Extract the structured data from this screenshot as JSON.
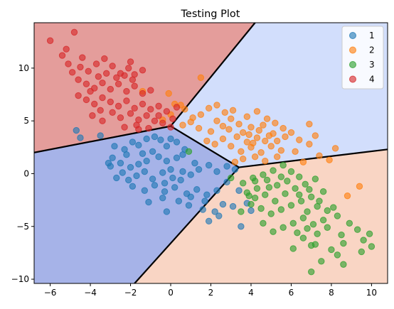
{
  "chart_data": {
    "type": "scatter",
    "title": "Testing Plot",
    "xlabel": "",
    "ylabel": "",
    "xlim": [
      -6.8,
      10.8
    ],
    "ylim": [
      -10.4,
      14.3
    ],
    "x_ticks": [
      -6,
      -4,
      -2,
      0,
      2,
      4,
      6,
      8,
      10
    ],
    "y_ticks": [
      -10,
      -5,
      0,
      5,
      10
    ],
    "x_tick_labels": [
      "−6",
      "−4",
      "−2",
      "0",
      "2",
      "4",
      "6",
      "8",
      "10"
    ],
    "y_tick_labels": [
      "−10",
      "−5",
      "0",
      "5",
      "10"
    ],
    "grid": false,
    "legend_position": "top-right",
    "background_regions": [
      {
        "label": "1",
        "color": "#a6b3e8"
      },
      {
        "label": "2",
        "color": "#d2defc"
      },
      {
        "label": "3",
        "color": "#f9d5c4"
      },
      {
        "label": "4",
        "color": "#e49d9b"
      }
    ],
    "boundaries": [
      {
        "from": [
          -6.8,
          2.0
        ],
        "to": [
          0.0,
          4.5
        ]
      },
      {
        "from": [
          0.0,
          4.5
        ],
        "to": [
          4.2,
          14.3
        ]
      },
      {
        "from": [
          0.0,
          4.5
        ],
        "to": [
          3.4,
          0.6
        ]
      },
      {
        "from": [
          3.4,
          0.6
        ],
        "to": [
          10.8,
          2.3
        ]
      },
      {
        "from": [
          3.4,
          0.6
        ],
        "to": [
          -1.8,
          -10.4
        ]
      }
    ],
    "series": [
      {
        "name": "1",
        "color": "#1f77b4",
        "points": [
          [
            -4.7,
            4.1
          ],
          [
            -4.5,
            3.4
          ],
          [
            -3.5,
            3.6
          ],
          [
            -2.8,
            2.6
          ],
          [
            -2.9,
            1.5
          ],
          [
            -2.2,
            1.8
          ],
          [
            -1.9,
            3.0
          ],
          [
            -1.6,
            2.7
          ],
          [
            -1.2,
            3.3
          ],
          [
            -0.8,
            3.5
          ],
          [
            -0.5,
            3.2
          ],
          [
            0.0,
            3.3
          ],
          [
            0.3,
            3.0
          ],
          [
            -3.1,
            1.0
          ],
          [
            -3.0,
            0.7
          ],
          [
            -2.5,
            1.0
          ],
          [
            -2.0,
            0.6
          ],
          [
            -1.6,
            0.9
          ],
          [
            -1.2,
            1.2
          ],
          [
            -0.6,
            1.6
          ],
          [
            -0.2,
            1.2
          ],
          [
            0.3,
            1.5
          ],
          [
            0.6,
            1.8
          ],
          [
            -0.9,
            2.1
          ],
          [
            -0.2,
            2.6
          ],
          [
            0.7,
            2.3
          ],
          [
            -2.7,
            -0.4
          ],
          [
            -2.4,
            0.1
          ],
          [
            -2.1,
            -0.6
          ],
          [
            -1.7,
            -0.2
          ],
          [
            -1.3,
            0.2
          ],
          [
            -0.9,
            -0.5
          ],
          [
            -0.4,
            0.1
          ],
          [
            0.1,
            -0.4
          ],
          [
            0.6,
            0.2
          ],
          [
            1.0,
            -0.1
          ],
          [
            1.4,
            0.4
          ],
          [
            1.9,
            0.8
          ],
          [
            2.3,
            0.2
          ],
          [
            2.8,
            0.7
          ],
          [
            -1.9,
            -1.2
          ],
          [
            -1.3,
            -1.6
          ],
          [
            -0.8,
            -1.1
          ],
          [
            -0.3,
            -1.7
          ],
          [
            0.2,
            -1.3
          ],
          [
            0.8,
            -1.9
          ],
          [
            1.3,
            -1.5
          ],
          [
            1.8,
            -2.0
          ],
          [
            2.3,
            -1.6
          ],
          [
            -1.1,
            -2.7
          ],
          [
            -0.4,
            -2.3
          ],
          [
            0.4,
            -2.6
          ],
          [
            1.0,
            -2.2
          ],
          [
            1.7,
            -2.6
          ],
          [
            2.6,
            -2.9
          ],
          [
            2.2,
            -3.6
          ],
          [
            1.6,
            -3.4
          ],
          [
            2.4,
            -4.0
          ],
          [
            1.9,
            -4.5
          ],
          [
            3.1,
            -3.1
          ],
          [
            3.8,
            -2.8
          ],
          [
            3.5,
            -5.0
          ],
          [
            4.0,
            -3.5
          ],
          [
            3.4,
            -1.6
          ],
          [
            -0.3,
            -0.9
          ],
          [
            0.5,
            -0.6
          ],
          [
            -1.4,
            1.9
          ],
          [
            0.0,
            0.4
          ],
          [
            1.2,
            1.0
          ],
          [
            -2.3,
            2.3
          ],
          [
            2.8,
            -0.8
          ],
          [
            3.2,
            0.4
          ],
          [
            0.9,
            -3.0
          ],
          [
            -0.2,
            -3.6
          ]
        ]
      },
      {
        "name": "2",
        "color": "#ff7f0e",
        "points": [
          [
            1.5,
            9.1
          ],
          [
            -1.4,
            7.8
          ],
          [
            -0.1,
            7.6
          ],
          [
            0.2,
            6.6
          ],
          [
            0.5,
            6.5
          ],
          [
            0.7,
            6.1
          ],
          [
            0.0,
            5.6
          ],
          [
            -0.4,
            5.1
          ],
          [
            1.9,
            6.2
          ],
          [
            2.3,
            6.5
          ],
          [
            1.1,
            5.3
          ],
          [
            1.5,
            5.6
          ],
          [
            2.7,
            5.8
          ],
          [
            3.1,
            6.0
          ],
          [
            2.3,
            5.0
          ],
          [
            2.6,
            4.5
          ],
          [
            2.0,
            4.0
          ],
          [
            1.4,
            4.3
          ],
          [
            0.6,
            4.6
          ],
          [
            3.0,
            5.2
          ],
          [
            3.4,
            4.7
          ],
          [
            2.9,
            4.2
          ],
          [
            3.6,
            3.9
          ],
          [
            4.0,
            4.4
          ],
          [
            4.4,
            4.1
          ],
          [
            3.8,
            5.4
          ],
          [
            4.3,
            5.9
          ],
          [
            4.8,
            5.2
          ],
          [
            5.2,
            4.8
          ],
          [
            5.6,
            4.3
          ],
          [
            6.0,
            3.9
          ],
          [
            6.4,
            3.2
          ],
          [
            5.7,
            3.5
          ],
          [
            5.1,
            3.8
          ],
          [
            4.7,
            3.1
          ],
          [
            4.3,
            3.4
          ],
          [
            3.8,
            3.0
          ],
          [
            3.3,
            3.5
          ],
          [
            3.0,
            2.6
          ],
          [
            3.5,
            2.1
          ],
          [
            4.0,
            2.5
          ],
          [
            4.5,
            2.0
          ],
          [
            5.0,
            2.6
          ],
          [
            5.5,
            2.2
          ],
          [
            6.2,
            2.1
          ],
          [
            6.9,
            2.8
          ],
          [
            7.4,
            1.7
          ],
          [
            8.2,
            2.4
          ],
          [
            4.2,
            1.6
          ],
          [
            3.6,
            1.4
          ],
          [
            3.2,
            1.1
          ],
          [
            4.7,
            1.2
          ],
          [
            5.3,
            1.6
          ],
          [
            6.6,
            1.1
          ],
          [
            7.9,
            1.3
          ],
          [
            2.2,
            2.8
          ],
          [
            2.6,
            3.3
          ],
          [
            1.8,
            3.1
          ],
          [
            4.9,
            3.6
          ],
          [
            4.1,
            2.9
          ],
          [
            3.9,
            3.7
          ],
          [
            4.6,
            4.6
          ],
          [
            5.3,
            3.1
          ],
          [
            8.8,
            -2.1
          ],
          [
            9.4,
            -1.2
          ],
          [
            6.9,
            4.7
          ],
          [
            7.2,
            3.6
          ],
          [
            1.0,
            4.9
          ]
        ]
      },
      {
        "name": "3",
        "color": "#2ca02c",
        "points": [
          [
            0.9,
            2.1
          ],
          [
            3.0,
            -0.4
          ],
          [
            3.6,
            -0.9
          ],
          [
            4.1,
            -0.4
          ],
          [
            4.6,
            -0.1
          ],
          [
            5.1,
            0.3
          ],
          [
            5.6,
            0.8
          ],
          [
            6.0,
            0.2
          ],
          [
            6.4,
            -0.3
          ],
          [
            5.8,
            -0.7
          ],
          [
            5.3,
            -1.1
          ],
          [
            4.8,
            -0.6
          ],
          [
            4.3,
            -1.4
          ],
          [
            3.8,
            -1.8
          ],
          [
            4.2,
            -2.3
          ],
          [
            4.7,
            -2.0
          ],
          [
            5.2,
            -2.6
          ],
          [
            5.7,
            -1.9
          ],
          [
            6.2,
            -1.4
          ],
          [
            6.7,
            -1.0
          ],
          [
            7.2,
            -0.5
          ],
          [
            7.6,
            -1.7
          ],
          [
            7.0,
            -2.2
          ],
          [
            6.5,
            -2.6
          ],
          [
            6.0,
            -3.0
          ],
          [
            5.5,
            -3.4
          ],
          [
            5.0,
            -3.8
          ],
          [
            4.5,
            -3.3
          ],
          [
            4.0,
            -2.9
          ],
          [
            3.5,
            -3.6
          ],
          [
            6.8,
            -3.6
          ],
          [
            7.3,
            -3.1
          ],
          [
            7.8,
            -3.5
          ],
          [
            8.3,
            -4.0
          ],
          [
            7.6,
            -4.4
          ],
          [
            7.1,
            -4.8
          ],
          [
            6.6,
            -4.2
          ],
          [
            6.1,
            -4.7
          ],
          [
            5.6,
            -5.1
          ],
          [
            5.1,
            -5.5
          ],
          [
            6.3,
            -5.6
          ],
          [
            6.8,
            -5.2
          ],
          [
            7.3,
            -5.7
          ],
          [
            7.8,
            -5.1
          ],
          [
            8.5,
            -5.8
          ],
          [
            8.9,
            -4.7
          ],
          [
            9.3,
            -5.3
          ],
          [
            9.6,
            -6.3
          ],
          [
            9.9,
            -5.7
          ],
          [
            10.0,
            -6.9
          ],
          [
            8.6,
            -6.6
          ],
          [
            8.0,
            -7.2
          ],
          [
            7.2,
            -6.7
          ],
          [
            6.6,
            -6.1
          ],
          [
            7.5,
            -8.3
          ],
          [
            7.0,
            -9.3
          ],
          [
            8.6,
            -8.6
          ],
          [
            7.0,
            -6.8
          ],
          [
            6.1,
            -7.1
          ],
          [
            8.3,
            -7.7
          ],
          [
            9.5,
            -7.4
          ],
          [
            4.6,
            -4.7
          ],
          [
            3.9,
            -2.1
          ],
          [
            4.2,
            -0.7
          ],
          [
            4.9,
            -1.3
          ],
          [
            5.5,
            -0.3
          ],
          [
            6.4,
            -2.0
          ],
          [
            6.9,
            -1.5
          ],
          [
            7.4,
            -2.6
          ],
          [
            8.1,
            -3.2
          ]
        ]
      },
      {
        "name": "4",
        "color": "#d62728",
        "points": [
          [
            -6.0,
            12.6
          ],
          [
            -4.8,
            13.4
          ],
          [
            -5.4,
            11.2
          ],
          [
            -5.1,
            10.4
          ],
          [
            -4.9,
            9.6
          ],
          [
            -4.5,
            10.1
          ],
          [
            -4.1,
            9.7
          ],
          [
            -3.7,
            10.4
          ],
          [
            -3.3,
            10.9
          ],
          [
            -2.9,
            10.2
          ],
          [
            -2.5,
            9.5
          ],
          [
            -2.1,
            10.0
          ],
          [
            -1.8,
            9.4
          ],
          [
            -1.4,
            9.8
          ],
          [
            -4.6,
            8.9
          ],
          [
            -4.2,
            8.5
          ],
          [
            -3.8,
            8.1
          ],
          [
            -3.4,
            8.6
          ],
          [
            -3.0,
            8.0
          ],
          [
            -2.6,
            8.5
          ],
          [
            -2.2,
            7.8
          ],
          [
            -1.8,
            8.3
          ],
          [
            -1.4,
            7.6
          ],
          [
            -1.0,
            7.9
          ],
          [
            -4.6,
            7.4
          ],
          [
            -4.2,
            7.0
          ],
          [
            -3.8,
            6.6
          ],
          [
            -3.4,
            7.2
          ],
          [
            -3.0,
            6.8
          ],
          [
            -2.6,
            6.4
          ],
          [
            -2.2,
            6.9
          ],
          [
            -1.8,
            6.2
          ],
          [
            -1.4,
            6.6
          ],
          [
            -1.0,
            6.1
          ],
          [
            -0.6,
            6.4
          ],
          [
            -0.2,
            5.9
          ],
          [
            0.3,
            6.3
          ],
          [
            -2.9,
            5.8
          ],
          [
            -2.5,
            5.3
          ],
          [
            -2.0,
            5.7
          ],
          [
            -1.6,
            5.1
          ],
          [
            -1.2,
            5.5
          ],
          [
            -0.8,
            5.0
          ],
          [
            -0.4,
            4.8
          ],
          [
            0.0,
            4.4
          ],
          [
            -3.4,
            5.0
          ],
          [
            -2.3,
            4.4
          ],
          [
            -1.7,
            4.6
          ],
          [
            -1.1,
            4.3
          ],
          [
            -4.0,
            7.8
          ],
          [
            -3.6,
            9.2
          ],
          [
            -3.2,
            9.5
          ],
          [
            -2.7,
            9.1
          ],
          [
            -2.3,
            9.3
          ],
          [
            -1.9,
            8.9
          ],
          [
            -3.9,
            5.5
          ],
          [
            -3.5,
            6.0
          ],
          [
            -0.6,
            5.5
          ],
          [
            0.1,
            5.2
          ],
          [
            -1.6,
            4.2
          ],
          [
            -5.2,
            11.8
          ],
          [
            -4.4,
            11.0
          ],
          [
            -2.0,
            10.6
          ]
        ]
      }
    ]
  }
}
